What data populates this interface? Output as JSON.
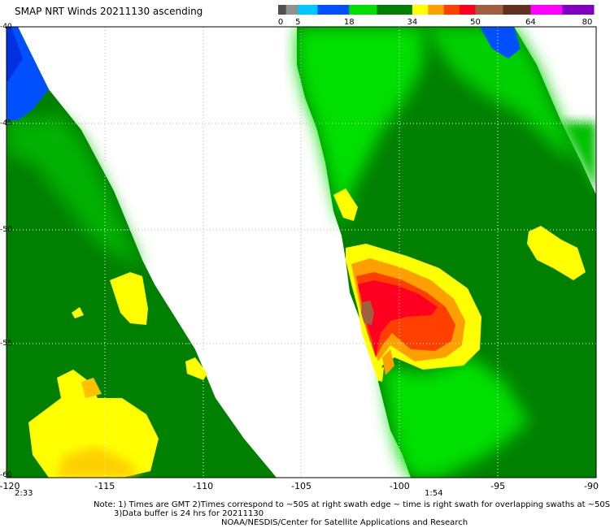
{
  "title": "SMAP NRT Winds 20211130 ascending",
  "colorbar": {
    "segments": [
      {
        "from": 0,
        "to": 2,
        "color": "#505050"
      },
      {
        "from": 2,
        "to": 5,
        "color": "#909090"
      },
      {
        "from": 5,
        "to": 10,
        "color": "#00c8ff"
      },
      {
        "from": 10,
        "to": 18,
        "color": "#0050ff"
      },
      {
        "from": 18,
        "to": 25,
        "color": "#00e000"
      },
      {
        "from": 25,
        "to": 34,
        "color": "#008000"
      },
      {
        "from": 34,
        "to": 38,
        "color": "#ffff00"
      },
      {
        "from": 38,
        "to": 42,
        "color": "#ffa000"
      },
      {
        "from": 42,
        "to": 46,
        "color": "#ff4000"
      },
      {
        "from": 46,
        "to": 50,
        "color": "#ff0020"
      },
      {
        "from": 50,
        "to": 57,
        "color": "#a06040"
      },
      {
        "from": 57,
        "to": 64,
        "color": "#603020"
      },
      {
        "from": 64,
        "to": 72,
        "color": "#ff00ff"
      },
      {
        "from": 72,
        "to": 80,
        "color": "#8000c0"
      }
    ],
    "labels": [
      "0",
      "5",
      "18",
      "34",
      "50",
      "64",
      "80"
    ],
    "label_values": [
      0,
      5,
      18,
      34,
      50,
      64,
      80
    ]
  },
  "axes": {
    "x_ticks": [
      "-120",
      "-115",
      "-110",
      "-105",
      "-100",
      "-95",
      "-90"
    ],
    "y_ticks": [
      "-40",
      "-45",
      "-50",
      "-55",
      "-60"
    ]
  },
  "swath_times": [
    "2:33",
    "1:54"
  ],
  "notes": {
    "line1": "Note: 1) Times are GMT 2)Times correspond to ~50S at right swath edge ~ time is right swath for overlapping swaths at ~50S",
    "line2": "3)Data buffer is 24 hrs for 20211130",
    "line3": "NOAA/NESDIS/Center for Satellite Applications and Research"
  },
  "colors": {
    "green_dark": "#008000",
    "green_light": "#00e000",
    "yellow": "#ffff00",
    "orange": "#ffa000",
    "red_orange": "#ff4000",
    "red": "#ff0020",
    "brown": "#a06040",
    "blue": "#0050ff"
  }
}
